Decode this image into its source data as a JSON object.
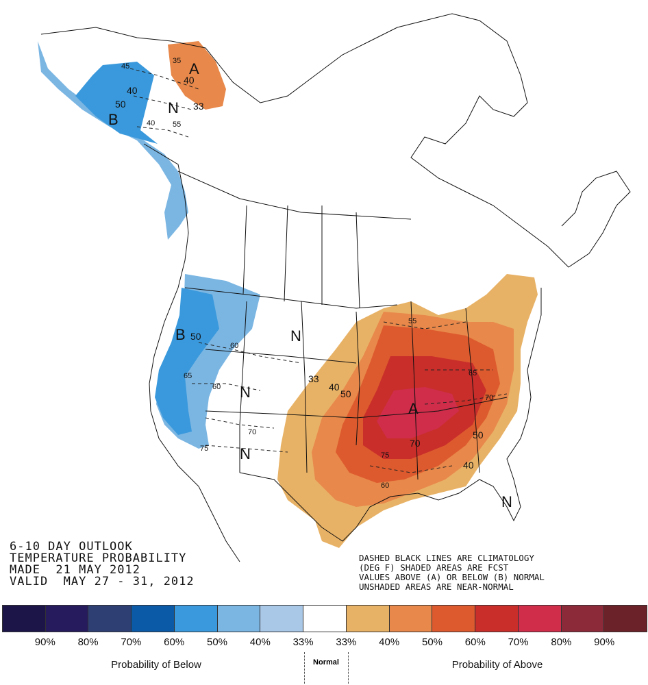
{
  "title_block": {
    "line1": "6-10 DAY OUTLOOK",
    "line2": "TEMPERATURE PROBABILITY",
    "line3": "MADE  21 MAY 2012",
    "line4": "VALID  MAY 27 - 31, 2012"
  },
  "note_block": {
    "line1": "DASHED BLACK LINES ARE CLIMATOLOGY",
    "line2": "(DEG F) SHADED AREAS ARE FCST",
    "line3": "VALUES ABOVE (A) OR BELOW (B) NORMAL",
    "line4": "UNSHADED AREAS ARE NEAR-NORMAL"
  },
  "map_labels": {
    "alaska_b": "B",
    "alaska_n": "N",
    "yukon_a": "A",
    "west_b": "B",
    "plains_n": "N",
    "rockies_n": "N",
    "southwest_n": "N",
    "east_a": "A",
    "florida_n": "N",
    "prob_labels": [
      "40",
      "50",
      "40",
      "33",
      "50",
      "33",
      "40",
      "50",
      "70",
      "50",
      "40"
    ],
    "climo_labels": [
      "45",
      "35",
      "40",
      "55",
      "60",
      "65",
      "60",
      "70",
      "75",
      "55",
      "65",
      "70",
      "75",
      "60"
    ]
  },
  "legend": {
    "colors": [
      "#1c1548",
      "#261b5c",
      "#2d3f73",
      "#0b5aa8",
      "#3a99dc",
      "#7bb6e3",
      "#a9c7e6",
      "#ffffff",
      "#e8b266",
      "#e8884a",
      "#dd5a2e",
      "#c92e2a",
      "#cf2d4a",
      "#8c2a3a",
      "#6b2228"
    ],
    "percent_labels": [
      "90%",
      "80%",
      "70%",
      "60%",
      "50%",
      "40%",
      "33%",
      "33%",
      "40%",
      "50%",
      "60%",
      "70%",
      "80%",
      "90%"
    ],
    "below_caption": "Probability of Below",
    "normal_caption": "Normal",
    "above_caption": "Probability of Above"
  }
}
